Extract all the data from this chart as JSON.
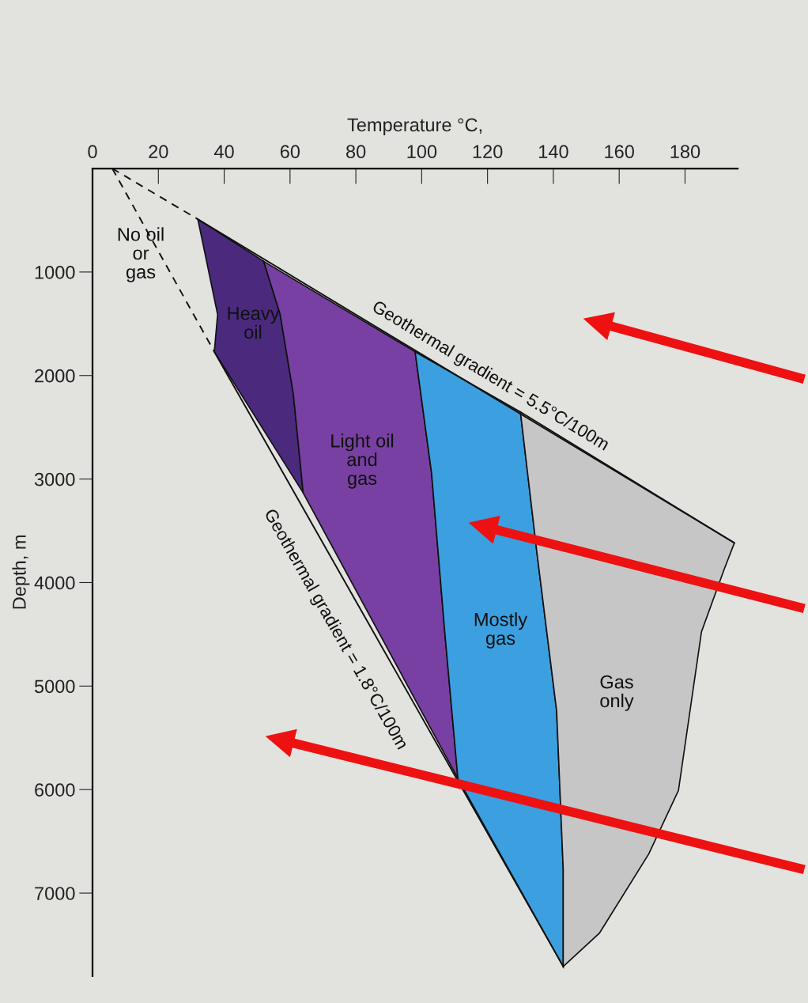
{
  "chart_data": {
    "type": "area",
    "xlabel": "Temperature °C,",
    "ylabel": "Depth, m",
    "xlim": [
      0,
      196
    ],
    "ylim": [
      7800,
      0
    ],
    "xticks": [
      0,
      20,
      40,
      60,
      80,
      100,
      120,
      140,
      160,
      180
    ],
    "yticks": [
      1000,
      2000,
      3000,
      4000,
      5000,
      6000,
      7000
    ],
    "grid": false,
    "series": [
      {
        "color": "#4b2a7e",
        "x": [
          32,
          52,
          57,
          61,
          64,
          37,
          38,
          32
        ],
        "values": [
          490,
          897,
          1410,
          2176,
          3134,
          1770,
          1410,
          490
        ]
      },
      {
        "color": "#7840a2",
        "x": [
          52,
          98,
          103,
          107,
          111,
          64,
          61,
          57
        ],
        "values": [
          897,
          1770,
          2943,
          4475,
          5893,
          3134,
          2176,
          1410
        ]
      },
      {
        "color": "#3b9fe0",
        "x": [
          98,
          130,
          135,
          141,
          143,
          143,
          111,
          107,
          103
        ],
        "values": [
          1770,
          2352,
          3709,
          5241,
          6774,
          7709,
          5893,
          4475,
          2943
        ]
      },
      {
        "color": "#c6c6c6",
        "x": [
          130,
          195,
          192,
          185,
          178,
          169,
          154,
          143,
          143,
          141,
          135
        ],
        "values": [
          2352,
          3617,
          3862,
          4475,
          6008,
          6621,
          7387,
          7709,
          6774,
          5241,
          3709
        ]
      },
      {
        "type": "line",
        "color": "#111111",
        "line_style": "solid",
        "x": [
          32,
          195
        ],
        "values": [
          490,
          3617
        ]
      },
      {
        "type": "line",
        "color": "#111111",
        "line_style": "solid",
        "x": [
          37,
          143
        ],
        "values": [
          1770,
          7709
        ]
      },
      {
        "type": "line",
        "color": "#111111",
        "line_style": "dashed",
        "x": [
          6,
          32
        ],
        "values": [
          0,
          490
        ]
      },
      {
        "type": "line",
        "color": "#111111",
        "line_style": "dashed",
        "x": [
          6,
          37
        ],
        "values": [
          0,
          1770
        ]
      }
    ],
    "annotations": [
      "No oil\nor\ngas",
      "Heavy\noil",
      "Light oil\nand\ngas",
      "Mostly\ngas",
      "Gas\nonly",
      "Geothermal gradient = 5.5°C/100m",
      "Geothermal gradient = 1.8°C/100m"
    ]
  }
}
